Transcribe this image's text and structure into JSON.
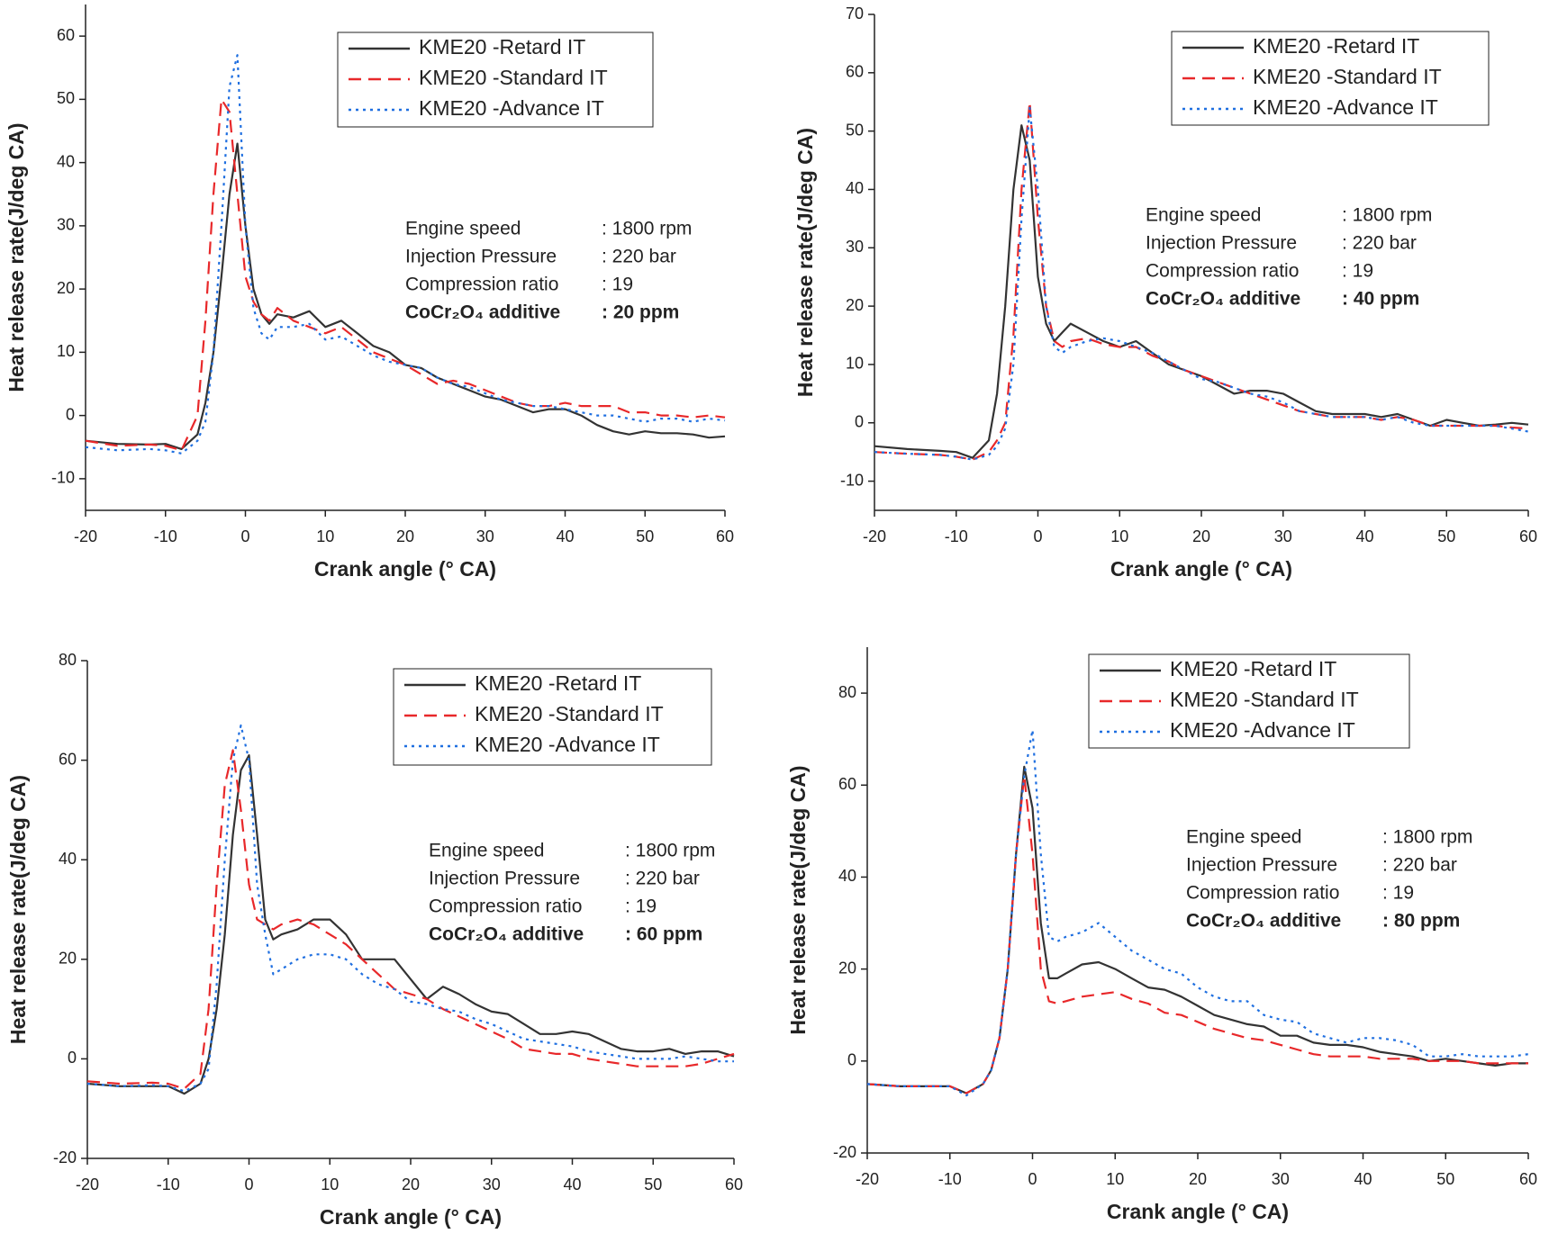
{
  "chart_data": [
    {
      "type": "line",
      "x_label": "Crank angle (° CA)",
      "y_label": "Heat release rate(J/deg CA)",
      "x": [
        -20,
        -16,
        -12,
        -10,
        -8,
        -6,
        -5,
        -4,
        -3,
        -2,
        -1,
        0,
        1,
        2,
        3,
        4,
        6,
        8,
        10,
        12,
        14,
        16,
        18,
        20,
        22,
        24,
        26,
        28,
        30,
        32,
        34,
        36,
        38,
        40,
        42,
        44,
        46,
        48,
        50,
        52,
        54,
        56,
        58,
        60
      ],
      "xlim": [
        -20,
        60
      ],
      "xticks": [
        -20,
        -10,
        0,
        10,
        20,
        30,
        40,
        50,
        60
      ],
      "ylim": [
        -15,
        65
      ],
      "yticks": [
        -10,
        0,
        10,
        20,
        30,
        40,
        50,
        60
      ],
      "legend": "upper right",
      "series": [
        {
          "name": "KME20 -Retard IT",
          "color": "#333333",
          "style": "solid",
          "values": [
            -4,
            -4.5,
            -4.6,
            -4.5,
            -5.3,
            -3,
            2,
            10,
            22,
            35,
            43,
            30,
            20,
            16,
            14.5,
            16,
            15.5,
            16.5,
            14,
            15,
            13,
            11,
            10,
            8,
            7.5,
            6,
            5,
            4,
            3,
            2.5,
            1.5,
            0.5,
            1,
            1,
            0,
            -1.5,
            -2.5,
            -3,
            -2.5,
            -2.8,
            -2.8,
            -3,
            -3.5,
            -3.3
          ]
        },
        {
          "name": "KME20 -Standard IT",
          "color": "#e8282a",
          "style": "dashed",
          "values": [
            -4,
            -4.8,
            -4.6,
            -4.8,
            -5.5,
            0,
            15,
            35,
            50,
            48,
            35,
            22,
            18,
            16,
            15,
            17,
            15,
            14,
            13,
            14,
            12,
            10,
            9,
            8,
            6.5,
            5,
            5.5,
            5,
            4,
            3,
            2,
            1.5,
            1.5,
            2,
            1.5,
            1.5,
            1.5,
            0.5,
            0.5,
            0,
            0,
            -0.3,
            0,
            -0.3
          ]
        },
        {
          "name": "KME20 -Advance IT",
          "color": "#1f6fe0",
          "style": "dotted",
          "values": [
            -5,
            -5.5,
            -5.3,
            -5.5,
            -6,
            -4,
            -1,
            10,
            30,
            52,
            57,
            30,
            17,
            13,
            12,
            14,
            14,
            14.5,
            12,
            12.5,
            11,
            9.5,
            8.5,
            8,
            7.5,
            6,
            5,
            4.5,
            3.5,
            2.5,
            2,
            1.5,
            1.5,
            1,
            0.5,
            0,
            0,
            -0.5,
            -1,
            -0.5,
            -0.5,
            -1,
            -0.5,
            -0.8
          ]
        }
      ],
      "annotations": [
        [
          "Engine speed",
          ": 1800 rpm"
        ],
        [
          "Injection Pressure",
          ": 220 bar"
        ],
        [
          "Compression ratio",
          ": 19"
        ],
        [
          "CoCr₂O₄ additive",
          ": 20 ppm"
        ]
      ]
    },
    {
      "type": "line",
      "x_label": "Crank angle (° CA)",
      "y_label": "Heat release rate(J/deg CA)",
      "x": [
        -20,
        -16,
        -12,
        -10,
        -8,
        -6,
        -5,
        -4,
        -3,
        -2,
        -1,
        0,
        1,
        2,
        3,
        4,
        6,
        8,
        10,
        12,
        14,
        16,
        18,
        20,
        22,
        24,
        26,
        28,
        30,
        32,
        34,
        36,
        38,
        40,
        42,
        44,
        46,
        48,
        50,
        52,
        54,
        56,
        58,
        60
      ],
      "xlim": [
        -20,
        60
      ],
      "xticks": [
        -20,
        -10,
        0,
        10,
        20,
        30,
        40,
        50,
        60
      ],
      "ylim": [
        -15,
        70
      ],
      "yticks": [
        -10,
        0,
        10,
        20,
        30,
        40,
        50,
        60,
        70
      ],
      "legend": "upper right",
      "series": [
        {
          "name": "KME20 -Retard IT",
          "color": "#333333",
          "style": "solid",
          "values": [
            -4,
            -4.5,
            -4.8,
            -5,
            -6,
            -3,
            5,
            20,
            40,
            51,
            45,
            25,
            17,
            14,
            15.5,
            17,
            15.5,
            14,
            13,
            14,
            12,
            10,
            9,
            8,
            6.5,
            5,
            5.5,
            5.5,
            5,
            3.5,
            2,
            1.5,
            1.5,
            1.5,
            1,
            1.5,
            0.5,
            -0.5,
            0.5,
            0,
            -0.5,
            -0.3,
            0,
            -0.3
          ]
        },
        {
          "name": "KME20 -Standard IT",
          "color": "#e8282a",
          "style": "dashed",
          "values": [
            -5,
            -5.3,
            -5.5,
            -5.8,
            -6.3,
            -5,
            -3,
            0,
            15,
            40,
            55,
            35,
            20,
            14,
            13,
            14,
            14.5,
            13.5,
            13,
            13,
            11.5,
            10.5,
            9,
            8,
            7,
            6,
            5,
            4,
            3,
            2,
            1.5,
            1,
            1,
            1,
            0.5,
            1,
            0.5,
            -0.5,
            -0.5,
            -0.5,
            -0.5,
            -0.5,
            -0.8,
            -1
          ]
        },
        {
          "name": "KME20 -Advance IT",
          "color": "#1f6fe0",
          "style": "dotted",
          "values": [
            -5,
            -5.3,
            -5.5,
            -5.8,
            -6.3,
            -5.5,
            -4,
            -1,
            10,
            35,
            54,
            40,
            20,
            13,
            12,
            13,
            14,
            14.5,
            14,
            13,
            12,
            10.5,
            9,
            7.5,
            7,
            6,
            5,
            4.5,
            3.5,
            2,
            1.5,
            1,
            1,
            1,
            0.5,
            1,
            0,
            -0.5,
            -0.5,
            -0.5,
            -0.5,
            -0.5,
            -1,
            -1.5
          ]
        }
      ],
      "annotations": [
        [
          "Engine speed",
          ": 1800 rpm"
        ],
        [
          "Injection Pressure",
          ": 220 bar"
        ],
        [
          "Compression ratio",
          ": 19"
        ],
        [
          "CoCr₂O₄ additive",
          ": 40 ppm"
        ]
      ]
    },
    {
      "type": "line",
      "x_label": "Crank angle (° CA)",
      "y_label": "Heat release rate(J/deg CA)",
      "x": [
        -20,
        -16,
        -12,
        -10,
        -8,
        -6,
        -5,
        -4,
        -3,
        -2,
        -1,
        0,
        1,
        2,
        3,
        4,
        6,
        8,
        10,
        12,
        14,
        16,
        18,
        20,
        22,
        24,
        26,
        28,
        30,
        32,
        34,
        36,
        38,
        40,
        42,
        44,
        46,
        48,
        50,
        52,
        54,
        56,
        58,
        60
      ],
      "xlim": [
        -20,
        60
      ],
      "xticks": [
        -20,
        -10,
        0,
        10,
        20,
        30,
        40,
        50,
        60
      ],
      "ylim": [
        -20,
        80
      ],
      "yticks": [
        -20,
        0,
        20,
        40,
        60,
        80
      ],
      "legend": "upper right",
      "series": [
        {
          "name": "KME20 -Retard IT",
          "color": "#333333",
          "style": "solid",
          "values": [
            -5,
            -5.5,
            -5.5,
            -5.5,
            -7,
            -5,
            0,
            10,
            25,
            45,
            58,
            61,
            45,
            28,
            24,
            25,
            26,
            28,
            28,
            25,
            20,
            20,
            20,
            16,
            12,
            14.5,
            13,
            11,
            9.5,
            9,
            7,
            5,
            5,
            5.5,
            5,
            3.5,
            2,
            1.5,
            1.5,
            2,
            1,
            1.5,
            1.5,
            0.5
          ]
        },
        {
          "name": "KME20 -Standard IT",
          "color": "#e8282a",
          "style": "dashed",
          "values": [
            -4.5,
            -5,
            -4.8,
            -5,
            -6,
            -3,
            10,
            35,
            55,
            62,
            50,
            35,
            28,
            27,
            26,
            27,
            28,
            27,
            25,
            23,
            20,
            17,
            14,
            13,
            12,
            10,
            8.5,
            7,
            5.5,
            4,
            2,
            1.5,
            1,
            1,
            0,
            -0.5,
            -1,
            -1.5,
            -1.5,
            -1.5,
            -1.5,
            -1,
            0,
            1
          ]
        },
        {
          "name": "KME20 -Advance IT",
          "color": "#1f6fe0",
          "style": "dotted",
          "values": [
            -5,
            -5.5,
            -5.3,
            -5.5,
            -6.5,
            -5,
            -2,
            15,
            40,
            60,
            67,
            60,
            35,
            25,
            17,
            18,
            20,
            21,
            21,
            20,
            17,
            15,
            14,
            11.5,
            11,
            10,
            9.5,
            8,
            7,
            5.5,
            4,
            3.5,
            3,
            2.5,
            1.5,
            1,
            0.5,
            0,
            0,
            0,
            0.5,
            0,
            -0.5,
            -0.5
          ]
        }
      ],
      "annotations": [
        [
          "Engine speed",
          ": 1800 rpm"
        ],
        [
          "Injection Pressure",
          ": 220 bar"
        ],
        [
          "Compression ratio",
          ": 19"
        ],
        [
          "CoCr₂O₄ additive",
          ": 60 ppm"
        ]
      ]
    },
    {
      "type": "line",
      "x_label": "Crank angle (° CA)",
      "y_label": "Heat release rate(J/deg CA)",
      "x": [
        -20,
        -16,
        -12,
        -10,
        -8,
        -6,
        -5,
        -4,
        -3,
        -2,
        -1,
        0,
        1,
        2,
        3,
        4,
        6,
        8,
        10,
        12,
        14,
        16,
        18,
        20,
        22,
        24,
        26,
        28,
        30,
        32,
        34,
        36,
        38,
        40,
        42,
        44,
        46,
        48,
        50,
        52,
        54,
        56,
        58,
        60
      ],
      "xlim": [
        -20,
        60
      ],
      "xticks": [
        -20,
        -10,
        0,
        10,
        20,
        30,
        40,
        50,
        60
      ],
      "ylim": [
        -20,
        90
      ],
      "yticks": [
        -20,
        0,
        20,
        40,
        60,
        80
      ],
      "legend": "upper right",
      "series": [
        {
          "name": "KME20 -Retard IT",
          "color": "#333333",
          "style": "solid",
          "values": [
            -5,
            -5.5,
            -5.5,
            -5.5,
            -7,
            -5,
            -2,
            5,
            20,
            45,
            64,
            55,
            30,
            18,
            18,
            19,
            21,
            21.5,
            20,
            18,
            16,
            15.5,
            14,
            12,
            10,
            9,
            8,
            7.5,
            5.5,
            5.5,
            4,
            3.5,
            3.5,
            3,
            2,
            1.5,
            1,
            0,
            0.5,
            0,
            -0.5,
            -1,
            -0.5,
            -0.5
          ]
        },
        {
          "name": "KME20 -Standard IT",
          "color": "#e8282a",
          "style": "dashed",
          "values": [
            -5,
            -5.5,
            -5.5,
            -5.5,
            -7,
            -5,
            -2,
            5,
            20,
            45,
            62,
            45,
            20,
            13,
            12.5,
            13,
            14,
            14.5,
            15,
            13.5,
            12.5,
            10.5,
            10,
            8.5,
            7,
            6,
            5,
            4.5,
            3.5,
            2.5,
            1.5,
            1,
            1,
            1,
            0.5,
            0.5,
            0.5,
            0,
            0,
            0,
            -0.5,
            -0.5,
            -0.5,
            -0.5
          ]
        },
        {
          "name": "KME20 -Advance IT",
          "color": "#1f6fe0",
          "style": "dotted",
          "values": [
            -5,
            -5.5,
            -5.5,
            -5.5,
            -7.5,
            -5,
            -2,
            5,
            20,
            45,
            62,
            72,
            45,
            27,
            26,
            27,
            28,
            30,
            27,
            24,
            22,
            20,
            19,
            16,
            14,
            13,
            13,
            10,
            9,
            8.5,
            6,
            5,
            4,
            5,
            5,
            4.5,
            3.5,
            1,
            1,
            1.5,
            1,
            1,
            1,
            1.5
          ]
        }
      ],
      "annotations": [
        [
          "Engine speed",
          ": 1800 rpm"
        ],
        [
          "Injection Pressure",
          ": 220 bar"
        ],
        [
          "Compression ratio",
          ": 19"
        ],
        [
          "CoCr₂O₄ additive",
          ": 80 ppm"
        ]
      ]
    }
  ]
}
